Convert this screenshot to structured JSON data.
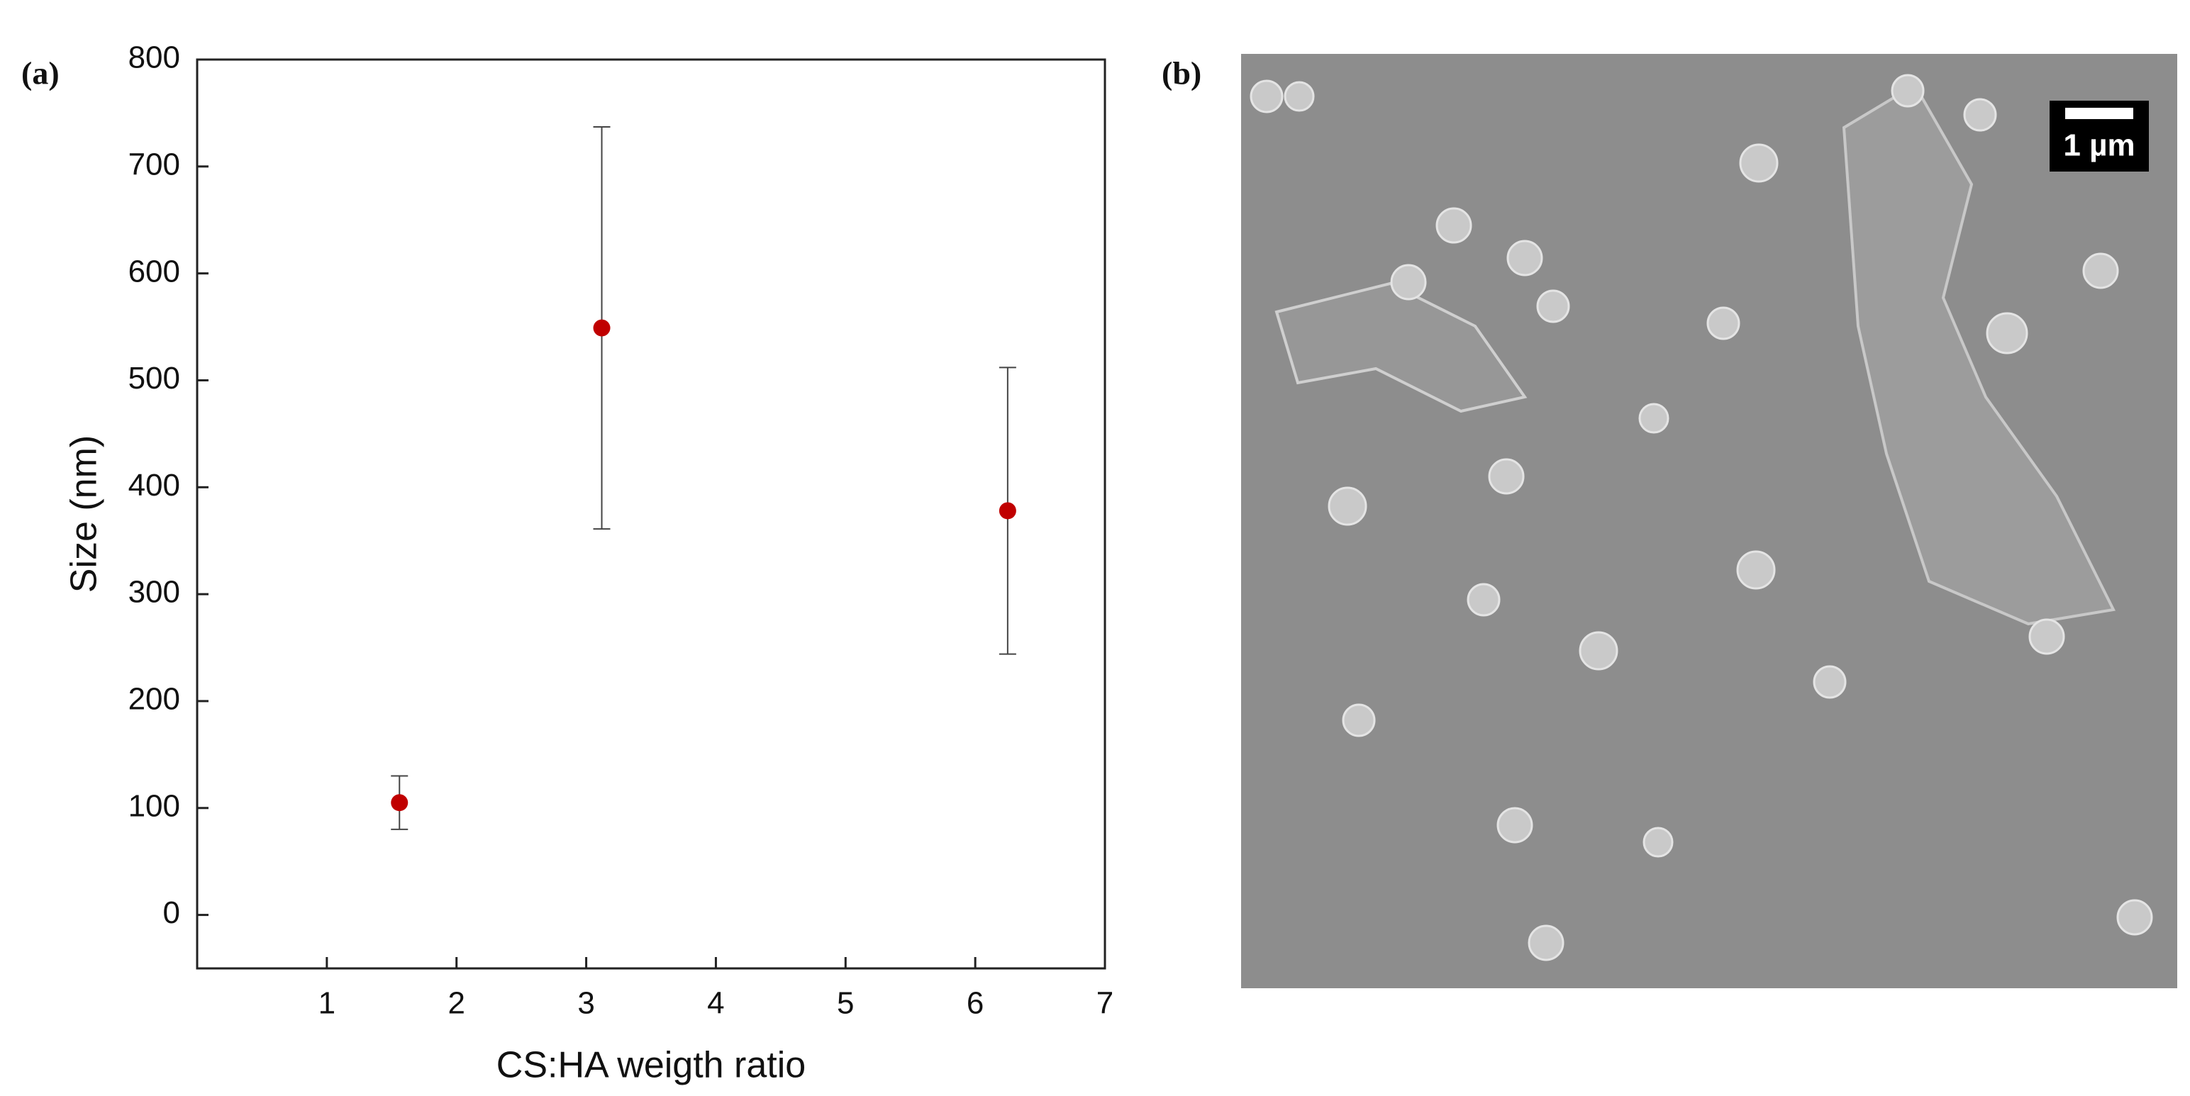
{
  "panel_labels": [
    "(a)",
    "(b)"
  ],
  "scale_bar": "1 µm",
  "chart_data": {
    "type": "scatter",
    "x_label": "CS:HA weigth ratio",
    "y_label": "Size (nm)",
    "x": [
      1.56,
      3.12,
      6.25
    ],
    "values": [
      105,
      549,
      378
    ],
    "errors": [
      25,
      188,
      134
    ],
    "color": "#c00000",
    "xlim": [
      0,
      7
    ],
    "xticks": [
      1,
      2,
      3,
      4,
      5,
      6,
      7
    ],
    "ylim": [
      -50,
      800
    ],
    "yticks": [
      0,
      100,
      200,
      300,
      400,
      500,
      600,
      700,
      800
    ]
  }
}
